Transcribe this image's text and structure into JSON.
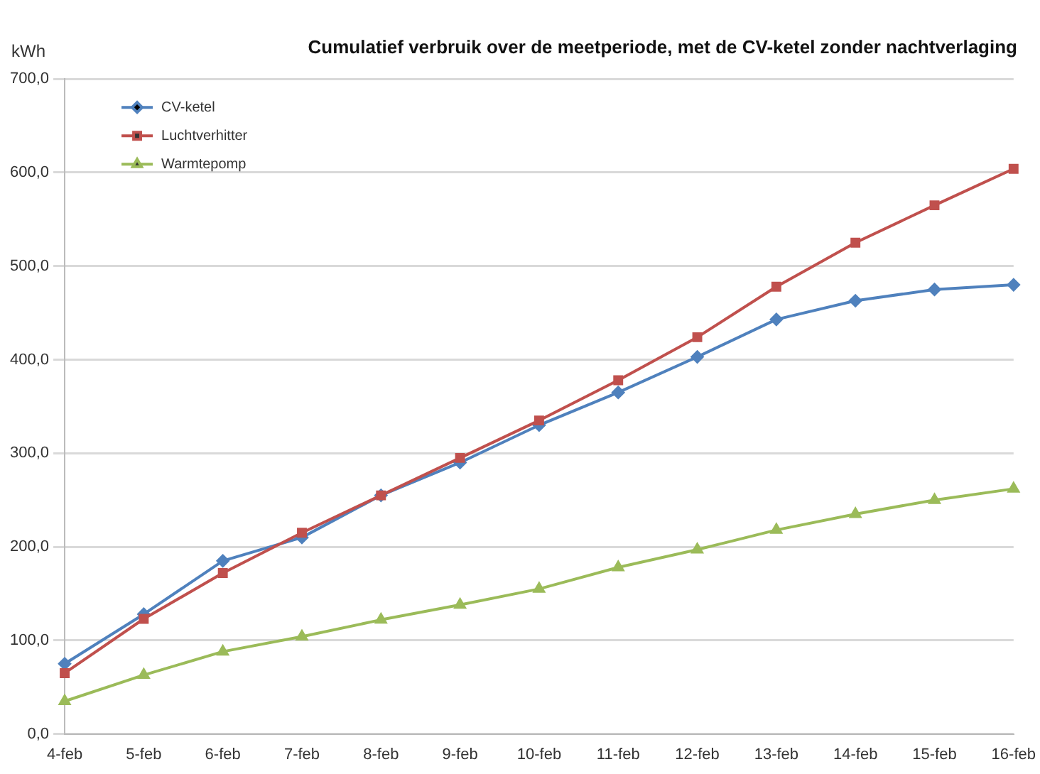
{
  "chart_data": {
    "type": "line",
    "title": "Cumulatief verbruik over de meetperiode, met de CV-ketel zonder nachtverlaging",
    "ylabel": "kWh",
    "categories": [
      "4-feb",
      "5-feb",
      "6-feb",
      "7-feb",
      "8-feb",
      "9-feb",
      "10-feb",
      "11-feb",
      "12-feb",
      "13-feb",
      "14-feb",
      "15-feb",
      "16-feb"
    ],
    "series": [
      {
        "name": "CV-ketel",
        "color": "#4f81bd",
        "marker": "diamond",
        "values": [
          75,
          128,
          185,
          210,
          255,
          290,
          330,
          365,
          403,
          443,
          463,
          475,
          480
        ]
      },
      {
        "name": "Luchtverhitter",
        "color": "#c0504d",
        "marker": "square",
        "values": [
          65,
          123,
          172,
          215,
          255,
          295,
          335,
          378,
          424,
          478,
          525,
          565,
          604
        ]
      },
      {
        "name": "Warmtepomp",
        "color": "#9bbb59",
        "marker": "triangle",
        "values": [
          35,
          63,
          88,
          104,
          122,
          138,
          155,
          178,
          197,
          218,
          235,
          250,
          262
        ]
      }
    ],
    "ylim": [
      0,
      700
    ],
    "yticks": [
      {
        "value": 0,
        "label": "0,0"
      },
      {
        "value": 100,
        "label": "100,0"
      },
      {
        "value": 200,
        "label": "200,0"
      },
      {
        "value": 300,
        "label": "300,0"
      },
      {
        "value": 400,
        "label": "400,0"
      },
      {
        "value": 500,
        "label": "500,0"
      },
      {
        "value": 600,
        "label": "600,0"
      },
      {
        "value": 700,
        "label": "700,0"
      }
    ],
    "grid": "y",
    "legend": "top left",
    "line_style": "solid"
  }
}
